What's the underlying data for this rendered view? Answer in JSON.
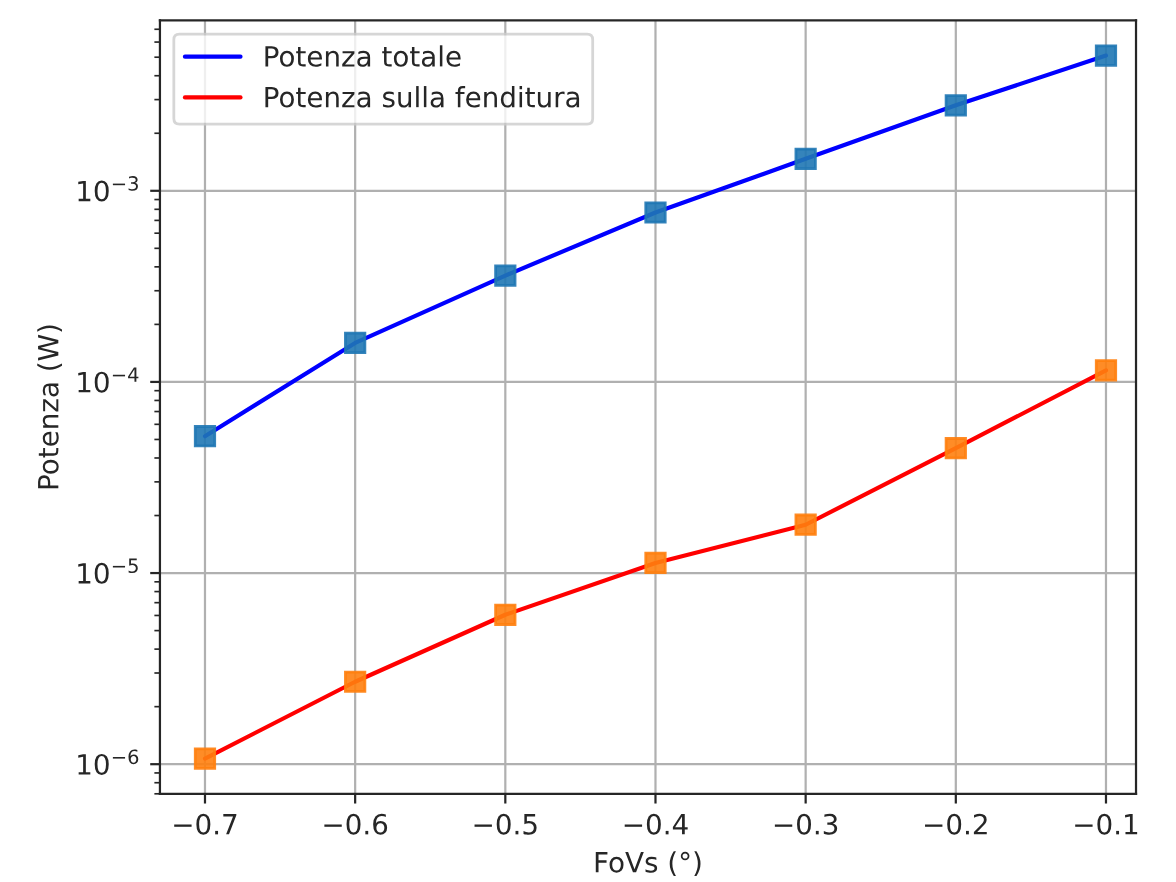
{
  "chart_data": {
    "type": "line",
    "xlabel": "FoVs (°)",
    "ylabel": "Potenza (W)",
    "x": [
      -0.7,
      -0.6,
      -0.5,
      -0.4,
      -0.3,
      -0.2,
      -0.1
    ],
    "series": [
      {
        "name": "Potenza totale",
        "color": "#0000ff",
        "values": [
          5.2e-05,
          0.00016,
          0.00036,
          0.00077,
          0.00147,
          0.0028,
          0.0051
        ]
      },
      {
        "name": "Potenza sulla fenditura",
        "color": "#ff0000",
        "values": [
          1.07e-06,
          2.7e-06,
          6.05e-06,
          1.13e-05,
          1.79e-05,
          4.5e-05,
          0.000115
        ]
      },
      {
        "type": "scatter",
        "marker": "square",
        "color": "#1f77b4",
        "values": [
          5.2e-05,
          0.00016,
          0.00036,
          0.00077,
          0.00147,
          0.0028,
          0.0051
        ]
      },
      {
        "type": "scatter",
        "marker": "square",
        "color": "#ff7f0e",
        "values": [
          1.07e-06,
          2.7e-06,
          6.05e-06,
          1.13e-05,
          1.79e-05,
          4.5e-05,
          0.000115
        ]
      }
    ],
    "log": "y",
    "xlim": [
      -0.73,
      -0.08
    ],
    "ylim": [
      7e-07,
      0.0078
    ],
    "xticks": [
      {
        "value": -0.7,
        "label": "−0.7"
      },
      {
        "value": -0.6,
        "label": "−0.6"
      },
      {
        "value": -0.5,
        "label": "−0.5"
      },
      {
        "value": -0.4,
        "label": "−0.4"
      },
      {
        "value": -0.3,
        "label": "−0.3"
      },
      {
        "value": -0.2,
        "label": "−0.2"
      },
      {
        "value": -0.1,
        "label": "−0.1"
      }
    ],
    "yticks": [
      {
        "value": 1e-06,
        "label": "10$^{−6}$"
      },
      {
        "value": 1e-05,
        "label": "10$^{−5}$"
      },
      {
        "value": 0.0001,
        "label": "10$^{−4}$"
      },
      {
        "value": 0.001,
        "label": "10$^{−3}$"
      }
    ],
    "grid": true,
    "legend": "top left"
  }
}
